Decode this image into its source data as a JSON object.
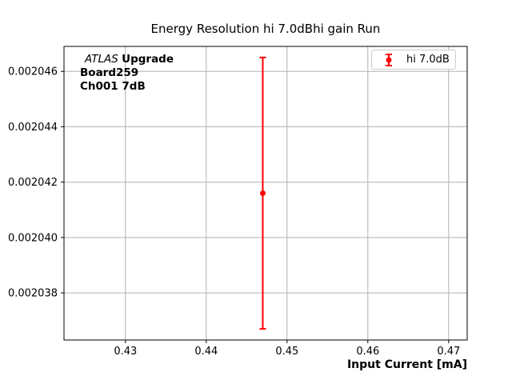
{
  "chart_data": {
    "type": "scatter",
    "title": "Energy Resolution hi 7.0dBhi gain Run",
    "xlabel": "Input Current [mA]",
    "ylabel": "",
    "grid": true,
    "xlim": [
      0.4224,
      0.4723
    ],
    "ylim": [
      0.0020363,
      0.0020469
    ],
    "xticks": {
      "values": [
        0.43,
        0.44,
        0.45,
        0.46,
        0.47
      ],
      "labels": [
        "0.43",
        "0.44",
        "0.45",
        "0.46",
        "0.47"
      ]
    },
    "yticks": {
      "values": [
        0.002038,
        0.00204,
        0.002042,
        0.002044,
        0.002046
      ],
      "labels": [
        "0.002038",
        "0.002040",
        "0.002042",
        "0.002044",
        "0.002046"
      ]
    },
    "series": [
      {
        "name": "hi 7.0dB",
        "type": "errorbar",
        "color": "#ff0000",
        "points": [
          {
            "x": 0.447,
            "y": 0.0020416,
            "yerr": 4.9e-06
          }
        ]
      }
    ],
    "legend": {
      "position": "upper right",
      "entries": [
        "hi 7.0dB"
      ]
    },
    "annotation": {
      "line1_italic": "ATLAS",
      "line1_bold": "Upgrade",
      "line2": "Board259",
      "line3": "Ch001 7dB"
    }
  },
  "colors": {
    "series": "#ff0000",
    "grid": "#b0b0b0",
    "axis": "#000000",
    "text": "#000000",
    "background": "#ffffff",
    "legend_border": "#cccccc"
  }
}
